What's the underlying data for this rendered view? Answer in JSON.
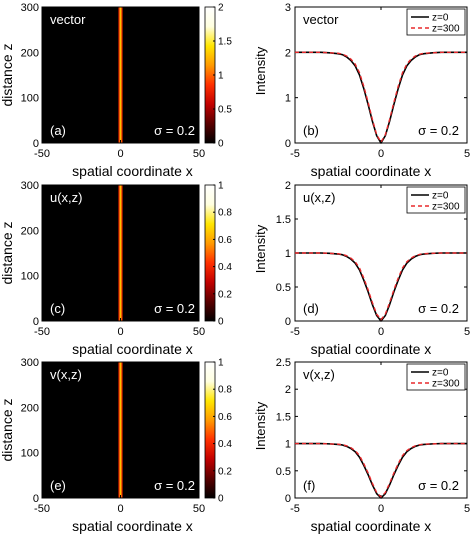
{
  "colorbar_hot": [
    "#000000",
    "#5a0000",
    "#c20000",
    "#ff3000",
    "#ff9a00",
    "#ffe600",
    "#ffffe0",
    "#ffffff"
  ],
  "line_colors": {
    "solid": "#000000",
    "dashed": "#e8282b"
  },
  "chart_data": [
    {
      "type": "heatmap",
      "label": "vector",
      "panel": "(a)",
      "sigma_text": "σ = 0.2",
      "xlabel": "spatial coordinate x",
      "ylabel": "distance  z",
      "xlim": [
        -50,
        50
      ],
      "ylim": [
        0,
        300
      ],
      "xticks": [
        -50,
        0,
        50
      ],
      "yticks": [
        0,
        100,
        200,
        300
      ],
      "colorbar": {
        "min": 0,
        "max": 2,
        "ticks": [
          0,
          0.5,
          1,
          1.5,
          2
        ]
      },
      "bright_stripe_x": 0
    },
    {
      "type": "line",
      "label": "vector",
      "panel": "(b)",
      "sigma_text": "σ = 0.2",
      "xlabel": "spatial coordinate x",
      "ylabel": "Intensity",
      "xlim": [
        -5,
        5
      ],
      "ylim": [
        0,
        3
      ],
      "xticks": [
        -5,
        0,
        5
      ],
      "xticklabels": [
        "-5",
        "0",
        "5"
      ],
      "yticks": [
        0,
        1,
        2,
        3
      ],
      "legend": [
        "z=0",
        "z=300"
      ],
      "legend_position": "top-right",
      "x": [
        -5,
        -4.5,
        -4,
        -3.5,
        -3,
        -2.5,
        -2.25,
        -2,
        -1.75,
        -1.5,
        -1.25,
        -1,
        -0.75,
        -0.5,
        -0.25,
        0,
        0.25,
        0.5,
        0.75,
        1,
        1.25,
        1.5,
        1.75,
        2,
        2.25,
        2.5,
        3,
        3.5,
        4,
        4.5,
        5
      ],
      "series": [
        {
          "name": "z=0",
          "values": [
            2.0,
            2.0,
            2.0,
            2.0,
            1.99,
            1.97,
            1.95,
            1.9,
            1.82,
            1.7,
            1.5,
            1.2,
            0.85,
            0.48,
            0.16,
            0.0,
            0.16,
            0.48,
            0.85,
            1.2,
            1.5,
            1.7,
            1.82,
            1.9,
            1.95,
            1.97,
            1.99,
            2.0,
            2.0,
            2.0,
            2.0
          ]
        },
        {
          "name": "z=300",
          "values": [
            2.0,
            2.0,
            2.0,
            2.0,
            1.99,
            1.98,
            1.96,
            1.92,
            1.85,
            1.74,
            1.55,
            1.25,
            0.9,
            0.52,
            0.18,
            0.02,
            0.18,
            0.52,
            0.9,
            1.25,
            1.55,
            1.74,
            1.85,
            1.92,
            1.96,
            1.98,
            1.99,
            2.0,
            2.0,
            2.0,
            2.0
          ]
        }
      ]
    },
    {
      "type": "heatmap",
      "label": "u(x,z)",
      "panel": "(c)",
      "sigma_text": "σ = 0.2",
      "xlabel": "spatial coordinate x",
      "ylabel": "distance  z",
      "xlim": [
        -50,
        50
      ],
      "ylim": [
        0,
        300
      ],
      "xticks": [
        -50,
        0,
        50
      ],
      "yticks": [
        0,
        100,
        200,
        300
      ],
      "colorbar": {
        "min": 0,
        "max": 1,
        "ticks": [
          0,
          0.2,
          0.4,
          0.6,
          0.8,
          1
        ]
      },
      "bright_stripe_x": 0
    },
    {
      "type": "line",
      "label": "u(x,z)",
      "panel": "(d)",
      "sigma_text": "σ = 0.2",
      "xlabel": "spatial coordinate x",
      "ylabel": "Intensity",
      "xlim": [
        -5,
        5
      ],
      "ylim": [
        0,
        2
      ],
      "xticks": [
        -5,
        0,
        5
      ],
      "xticklabels": [
        "-5",
        "0",
        "5"
      ],
      "yticks": [
        0,
        0.5,
        1,
        1.5,
        2
      ],
      "legend": [
        "z=0",
        "z=300"
      ],
      "legend_position": "top-right",
      "x": [
        -5,
        -4.5,
        -4,
        -3.5,
        -3,
        -2.5,
        -2.25,
        -2,
        -1.75,
        -1.5,
        -1.25,
        -1,
        -0.75,
        -0.5,
        -0.25,
        0,
        0.25,
        0.5,
        0.75,
        1,
        1.25,
        1.5,
        1.75,
        2,
        2.25,
        2.5,
        3,
        3.5,
        4,
        4.5,
        5
      ],
      "series": [
        {
          "name": "z=0",
          "values": [
            1.0,
            1.0,
            1.0,
            1.0,
            0.995,
            0.985,
            0.975,
            0.95,
            0.91,
            0.85,
            0.75,
            0.6,
            0.43,
            0.24,
            0.08,
            0.0,
            0.08,
            0.24,
            0.43,
            0.6,
            0.75,
            0.85,
            0.91,
            0.95,
            0.975,
            0.985,
            0.995,
            1.0,
            1.0,
            1.0,
            1.0
          ]
        },
        {
          "name": "z=300",
          "values": [
            1.0,
            1.0,
            1.0,
            1.0,
            0.995,
            0.99,
            0.98,
            0.96,
            0.925,
            0.87,
            0.78,
            0.63,
            0.46,
            0.27,
            0.1,
            0.02,
            0.1,
            0.27,
            0.46,
            0.63,
            0.78,
            0.87,
            0.925,
            0.96,
            0.98,
            0.99,
            0.995,
            1.0,
            1.0,
            1.0,
            1.0
          ]
        }
      ]
    },
    {
      "type": "heatmap",
      "label": "v(x,z)",
      "panel": "(e)",
      "sigma_text": "σ = 0.2",
      "xlabel": "spatial coordinate x",
      "ylabel": "distance  z",
      "xlim": [
        -50,
        50
      ],
      "ylim": [
        0,
        300
      ],
      "xticks": [
        -50,
        0,
        50
      ],
      "yticks": [
        0,
        100,
        200,
        300
      ],
      "colorbar": {
        "min": 0,
        "max": 1,
        "ticks": [
          0,
          0.2,
          0.4,
          0.6,
          0.8,
          1
        ]
      },
      "bright_stripe_x": 0
    },
    {
      "type": "line",
      "label": "v(x,z)",
      "panel": "(f)",
      "sigma_text": "σ = 0.2",
      "xlabel": "spatial coordinate x",
      "ylabel": "Intensity",
      "xlim": [
        -5,
        5
      ],
      "ylim": [
        0,
        2.5
      ],
      "xticks": [
        -5,
        0,
        5
      ],
      "xticklabels": [
        "-5",
        "0",
        "5"
      ],
      "yticks": [
        0,
        0.5,
        1,
        1.5,
        2,
        2.5
      ],
      "legend": [
        "z=0",
        "z=300"
      ],
      "legend_position": "top-right",
      "x": [
        -5,
        -4.5,
        -4,
        -3.5,
        -3,
        -2.5,
        -2.25,
        -2,
        -1.75,
        -1.5,
        -1.25,
        -1,
        -0.75,
        -0.5,
        -0.25,
        0,
        0.25,
        0.5,
        0.75,
        1,
        1.25,
        1.5,
        1.75,
        2,
        2.25,
        2.5,
        3,
        3.5,
        4,
        4.5,
        5
      ],
      "series": [
        {
          "name": "z=0",
          "values": [
            1.0,
            1.0,
            1.0,
            1.0,
            0.995,
            0.985,
            0.975,
            0.95,
            0.91,
            0.85,
            0.75,
            0.6,
            0.43,
            0.24,
            0.08,
            0.0,
            0.08,
            0.24,
            0.43,
            0.6,
            0.75,
            0.85,
            0.91,
            0.95,
            0.975,
            0.985,
            0.995,
            1.0,
            1.0,
            1.0,
            1.0
          ]
        },
        {
          "name": "z=300",
          "values": [
            1.0,
            1.0,
            1.0,
            1.0,
            0.995,
            0.99,
            0.98,
            0.96,
            0.925,
            0.87,
            0.78,
            0.63,
            0.46,
            0.27,
            0.1,
            0.02,
            0.1,
            0.27,
            0.46,
            0.63,
            0.78,
            0.87,
            0.925,
            0.96,
            0.98,
            0.99,
            0.995,
            1.0,
            1.0,
            1.0,
            1.0
          ]
        }
      ]
    }
  ]
}
